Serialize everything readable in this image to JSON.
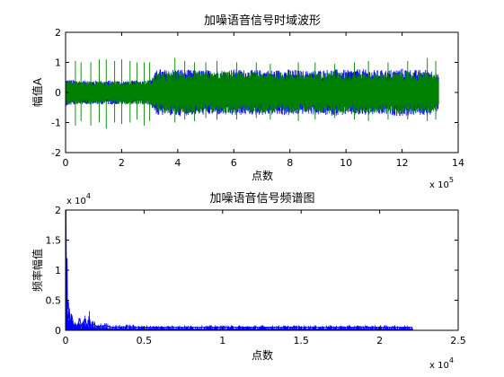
{
  "chart_data": [
    {
      "type": "line",
      "title": "加噪语音信号时域波形",
      "xlabel": "点数",
      "ylabel": "幅值A",
      "x_multiplier": "x 10",
      "x_multiplier_exp": "5",
      "xlim": [
        0,
        14
      ],
      "ylim": [
        -2,
        2
      ],
      "x_ticks": [
        "0",
        "2",
        "4",
        "6",
        "8",
        "10",
        "12",
        "14"
      ],
      "y_ticks": [
        "-2",
        "-1",
        "0",
        "1",
        "2"
      ],
      "grid": false,
      "series": [
        {
          "color": "#0000ff",
          "x_range": [
            0,
            13.3
          ],
          "envelope": {
            "x": [
              0,
              0.5,
              1,
              1.5,
              2,
              2.5,
              3,
              3.3,
              3.6,
              4,
              4.5,
              5,
              5.5,
              6,
              6.5,
              7,
              7.5,
              8,
              8.5,
              9,
              9.5,
              10,
              10.5,
              11,
              11.5,
              12,
              12.5,
              13,
              13.3
            ],
            "max": [
              0.45,
              0.4,
              0.4,
              0.4,
              0.4,
              0.4,
              0.42,
              0.8,
              0.75,
              0.8,
              0.75,
              0.75,
              0.75,
              0.78,
              0.75,
              0.75,
              0.75,
              0.78,
              0.72,
              0.75,
              0.78,
              0.75,
              0.78,
              0.75,
              0.75,
              0.8,
              0.75,
              0.78,
              0.6
            ],
            "min": [
              -0.45,
              -0.4,
              -0.4,
              -0.4,
              -0.4,
              -0.4,
              -0.42,
              -0.8,
              -0.75,
              -0.8,
              -0.75,
              -0.75,
              -0.75,
              -0.78,
              -0.75,
              -0.75,
              -0.75,
              -0.78,
              -0.72,
              -0.75,
              -0.78,
              -0.75,
              -0.78,
              -0.75,
              -0.75,
              -0.8,
              -0.75,
              -0.78,
              -0.6
            ]
          }
        },
        {
          "color": "#008000",
          "x_range": [
            0,
            13.3
          ],
          "envelope": {
            "x": [
              0,
              0.5,
              1,
              1.5,
              2,
              2.5,
              3,
              3.3,
              3.6,
              4,
              4.5,
              5,
              5.5,
              6,
              6.5,
              7,
              7.5,
              8,
              8.5,
              9,
              9.5,
              10,
              10.5,
              11,
              11.5,
              12,
              12.5,
              13,
              13.3
            ],
            "max": [
              0.42,
              0.38,
              0.38,
              0.38,
              0.38,
              0.38,
              0.4,
              0.7,
              0.68,
              0.7,
              0.68,
              0.68,
              0.68,
              0.7,
              0.68,
              0.68,
              0.68,
              0.7,
              0.65,
              0.68,
              0.7,
              0.68,
              0.7,
              0.68,
              0.68,
              0.72,
              0.68,
              0.7,
              0.55
            ],
            "min": [
              -0.42,
              -0.38,
              -0.38,
              -0.38,
              -0.38,
              -0.38,
              -0.4,
              -0.7,
              -0.68,
              -0.7,
              -0.68,
              -0.68,
              -0.68,
              -0.7,
              -0.68,
              -0.68,
              -0.68,
              -0.7,
              -0.65,
              -0.68,
              -0.7,
              -0.68,
              -0.7,
              -0.68,
              -0.68,
              -0.72,
              -0.68,
              -0.7,
              -0.55
            ]
          },
          "spikes": [
            [
              0.35,
              1.05,
              -1.1
            ],
            [
              0.55,
              1.0,
              -0.95
            ],
            [
              0.9,
              1.0,
              -1.1
            ],
            [
              1.2,
              1.1,
              -1.0
            ],
            [
              1.45,
              1.1,
              -1.2
            ],
            [
              1.75,
              1.05,
              -1.0
            ],
            [
              2.0,
              1.1,
              -1.05
            ],
            [
              2.3,
              1.05,
              -1.0
            ],
            [
              2.55,
              1.0,
              -0.9
            ],
            [
              2.8,
              1.0,
              -1.1
            ],
            [
              3.0,
              1.0,
              -0.95
            ],
            [
              3.9,
              1.15,
              -1.0
            ],
            [
              4.25,
              1.05,
              -0.9
            ],
            [
              4.6,
              1.0,
              -0.95
            ],
            [
              5.0,
              1.0,
              -0.85
            ],
            [
              5.4,
              1.05,
              -0.9
            ],
            [
              6.1,
              1.0,
              -0.9
            ],
            [
              6.8,
              1.0,
              -0.85
            ],
            [
              7.3,
              0.95,
              -0.9
            ],
            [
              8.3,
              1.0,
              -0.95
            ],
            [
              8.9,
              1.0,
              -0.9
            ],
            [
              9.6,
              0.95,
              -0.85
            ],
            [
              10.3,
              1.0,
              -0.9
            ],
            [
              10.8,
              1.05,
              -0.95
            ],
            [
              11.5,
              1.0,
              -0.9
            ],
            [
              12.2,
              1.05,
              -0.9
            ],
            [
              12.9,
              1.15,
              -0.95
            ],
            [
              13.2,
              1.05,
              -0.9
            ]
          ]
        }
      ]
    },
    {
      "type": "line",
      "title": "加噪语音信号频谱图",
      "xlabel": "点数",
      "ylabel": "频率幅值",
      "x_multiplier": "x 10",
      "x_multiplier_exp": "4",
      "y_multiplier": "x 10",
      "y_multiplier_exp": "4",
      "xlim": [
        0,
        2.5
      ],
      "ylim": [
        0,
        2
      ],
      "x_ticks": [
        "0",
        "0.5",
        "1",
        "1.5",
        "2",
        "2.5"
      ],
      "y_ticks": [
        "0",
        "0.5",
        "1",
        "1.5",
        "2"
      ],
      "grid": false,
      "series": [
        {
          "color": "#0000ff",
          "x_range": [
            0,
            2.21
          ],
          "points": [
            [
              0.0,
              0.3
            ],
            [
              0.003,
              1.75
            ],
            [
              0.006,
              0.6
            ],
            [
              0.009,
              1.2
            ],
            [
              0.012,
              0.35
            ],
            [
              0.016,
              0.5
            ],
            [
              0.02,
              0.2
            ],
            [
              0.025,
              0.3
            ],
            [
              0.03,
              0.12
            ],
            [
              0.04,
              0.25
            ],
            [
              0.05,
              0.08
            ],
            [
              0.06,
              0.1
            ],
            [
              0.075,
              0.06
            ],
            [
              0.09,
              0.2
            ],
            [
              0.1,
              0.07
            ],
            [
              0.12,
              0.18
            ],
            [
              0.14,
              0.07
            ],
            [
              0.15,
              0.22
            ],
            [
              0.16,
              0.08
            ],
            [
              0.18,
              0.1
            ],
            [
              0.2,
              0.06
            ],
            [
              0.25,
              0.08
            ],
            [
              0.3,
              0.05
            ],
            [
              0.4,
              0.06
            ],
            [
              0.5,
              0.05
            ],
            [
              0.7,
              0.05
            ],
            [
              1.0,
              0.05
            ],
            [
              1.3,
              0.05
            ],
            [
              1.6,
              0.05
            ],
            [
              1.9,
              0.05
            ],
            [
              2.1,
              0.05
            ],
            [
              2.21,
              0.05
            ]
          ],
          "noise_floor": 0.05
        }
      ]
    }
  ]
}
